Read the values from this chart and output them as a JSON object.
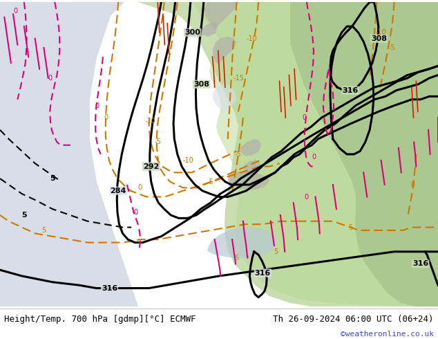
{
  "title_left": "Height/Temp. 700 hPa [gdmp][°C] ECMWF",
  "title_right": "Th 26-09-2024 06:00 UTC (06+24)",
  "watermark": "©weatheronline.co.uk",
  "watermark_color": "#4444cc",
  "title_fontsize": 9,
  "fig_width": 6.34,
  "fig_height": 4.9,
  "dpi": 100,
  "bg_ocean": "#d8dde8",
  "bg_land": "#c8ddb0",
  "bg_land2": "#aac890",
  "bg_gray": "#b0b0a8",
  "map_bg": "#c8d0c0"
}
